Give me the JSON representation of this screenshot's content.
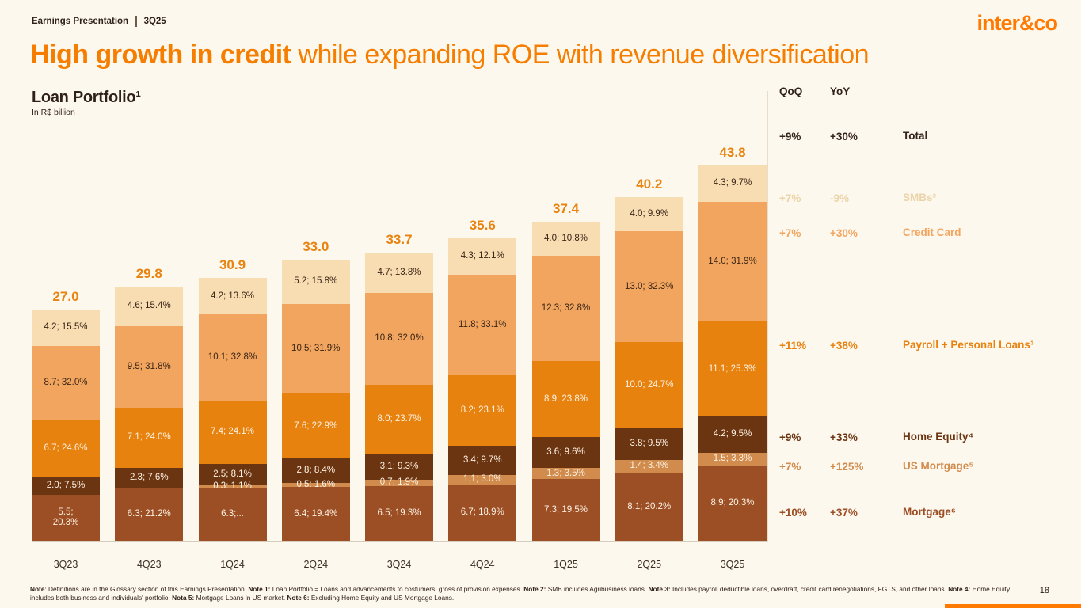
{
  "page": {
    "topbar_left": "Earnings Presentation",
    "topbar_right": "3Q25",
    "logo": "inter&co",
    "page_number": "18"
  },
  "title": {
    "bold": "High growth in credit",
    "rest": " while expanding ROE with revenue diversification"
  },
  "chart_header": {
    "title": "Loan Portfolio¹",
    "subtitle": "In R$ billion"
  },
  "chart_data": {
    "type": "bar",
    "stacked": true,
    "title": "Loan Portfolio",
    "unit": "R$ billion",
    "categories": [
      "3Q23",
      "4Q23",
      "1Q24",
      "2Q24",
      "3Q24",
      "4Q24",
      "1Q25",
      "2Q25",
      "3Q25"
    ],
    "totals": [
      "27.0",
      "29.8",
      "30.9",
      "33.0",
      "33.7",
      "35.6",
      "37.4",
      "40.2",
      "43.8"
    ],
    "total_label_color": "#E8830F",
    "series": [
      {
        "key": "mortgage",
        "name": "Mortgage",
        "color": "#9C4E24",
        "text_color": "#FDF2E3",
        "values": [
          5.5,
          6.3,
          6.3,
          6.4,
          6.5,
          6.7,
          7.3,
          8.1,
          8.9
        ],
        "labels": [
          "5.5;\n20.3%",
          "6.3; 21.2%",
          "6.3;...",
          "6.4; 19.4%",
          "6.5; 19.3%",
          "6.7; 18.9%",
          "7.3; 19.5%",
          "8.1; 20.2%",
          "8.9; 20.3%"
        ]
      },
      {
        "key": "us-mortgage",
        "name": "US Mortgage",
        "color": "#D08B4D",
        "text_color": "#FDF2E3",
        "values": [
          0,
          0,
          0.3,
          0.5,
          0.7,
          1.1,
          1.3,
          1.4,
          1.5
        ],
        "labels": [
          "",
          "",
          "0.3; 1.1%",
          "0.5; 1.6%",
          "0.7; 1.9%",
          "1.1; 3.0%",
          "1.3; 3.5%",
          "1.4; 3.4%",
          "1.5; 3.3%"
        ]
      },
      {
        "key": "home-equity",
        "name": "Home Equity",
        "color": "#6C3512",
        "text_color": "#FDF2E3",
        "values": [
          2.0,
          2.3,
          2.5,
          2.8,
          3.1,
          3.4,
          3.6,
          3.8,
          4.2
        ],
        "labels": [
          "2.0; 7.5%",
          "2.3; 7.6%",
          "2.5; 8.1%",
          "2.8; 8.4%",
          "3.1; 9.3%",
          "3.4; 9.7%",
          "3.6; 9.6%",
          "3.8; 9.5%",
          "4.2; 9.5%"
        ]
      },
      {
        "key": "payroll-personal-loans",
        "name": "Payroll + Personal Loans",
        "color": "#E8820F",
        "text_color": "#FDF2E3",
        "values": [
          6.7,
          7.1,
          7.4,
          7.6,
          8.0,
          8.2,
          8.9,
          10.0,
          11.1
        ],
        "labels": [
          "6.7; 24.6%",
          "7.1; 24.0%",
          "7.4; 24.1%",
          "7.6; 22.9%",
          "8.0; 23.7%",
          "8.2; 23.1%",
          "8.9; 23.8%",
          "10.0; 24.7%",
          "11.1; 25.3%"
        ]
      },
      {
        "key": "credit-card",
        "name": "Credit Card",
        "color": "#F2A55F",
        "text_color": "#3A2516",
        "values": [
          8.7,
          9.5,
          10.1,
          10.5,
          10.8,
          11.8,
          12.3,
          13.0,
          14.0
        ],
        "labels": [
          "8.7; 32.0%",
          "9.5; 31.8%",
          "10.1; 32.8%",
          "10.5; 31.9%",
          "10.8; 32.0%",
          "11.8; 33.1%",
          "12.3; 32.8%",
          "13.0; 32.3%",
          "14.0; 31.9%"
        ]
      },
      {
        "key": "smbs",
        "name": "SMBs",
        "color": "#F8DCB2",
        "text_color": "#3A2516",
        "values": [
          4.2,
          4.6,
          4.2,
          5.2,
          4.7,
          4.3,
          4.0,
          4.0,
          4.3
        ],
        "labels": [
          "4.2; 15.5%",
          "4.6; 15.4%",
          "4.2; 13.6%",
          "5.2; 15.8%",
          "4.7; 13.8%",
          "4.3; 12.1%",
          "4.0; 10.8%",
          "4.0; 9.9%",
          "4.3; 9.7%"
        ]
      }
    ]
  },
  "growth_table": {
    "col_headers": [
      "QoQ",
      "YoY"
    ],
    "rows": [
      {
        "qoq": "+9%",
        "yoy": "+30%",
        "label": "Total",
        "color": "#33251A"
      },
      {
        "qoq": "+7%",
        "yoy": "-9%",
        "label": "SMBs²",
        "color": "#EBD4A9"
      },
      {
        "qoq": "+7%",
        "yoy": "+30%",
        "label": "Credit Card",
        "color": "#F2A55F"
      },
      {
        "qoq": "+11%",
        "yoy": "+38%",
        "label": "Payroll + Personal Loans³",
        "color": "#E8820F"
      },
      {
        "qoq": "+9%",
        "yoy": "+33%",
        "label": "Home Equity⁴",
        "color": "#6C3512"
      },
      {
        "qoq": "+7%",
        "yoy": "+125%",
        "label": "US Mortgage⁵",
        "color": "#D08B4D"
      },
      {
        "qoq": "+10%",
        "yoy": "+37%",
        "label": "Mortgage⁶",
        "color": "#9C4E24"
      }
    ]
  },
  "footnote": {
    "runs": [
      {
        "b": true,
        "t": "Note"
      },
      {
        "b": false,
        "t": ": Definitions are in the Glossary section of this Earnings Presentation. "
      },
      {
        "b": true,
        "t": "Note 1:"
      },
      {
        "b": false,
        "t": " Loan Portfolio = Loans and advancements to costumers, gross of provision expenses. "
      },
      {
        "b": true,
        "t": "Note 2:"
      },
      {
        "b": false,
        "t": " SMB includes Agribusiness loans. "
      },
      {
        "b": true,
        "t": "Note 3:"
      },
      {
        "b": false,
        "t": " Includes payroll deductible loans, overdraft, credit card renegotiations, FGTS, and other loans. "
      },
      {
        "b": true,
        "t": "Note 4:"
      },
      {
        "b": false,
        "t": " Home Equity includes both business and individuals' portfolio. "
      },
      {
        "b": true,
        "t": "Nota 5:"
      },
      {
        "b": false,
        "t": " Mortgage Loans in US market. "
      },
      {
        "b": true,
        "t": "Note 6:"
      },
      {
        "b": false,
        "t": " Excluding Home Equity and US Mortgage Loans."
      }
    ]
  }
}
